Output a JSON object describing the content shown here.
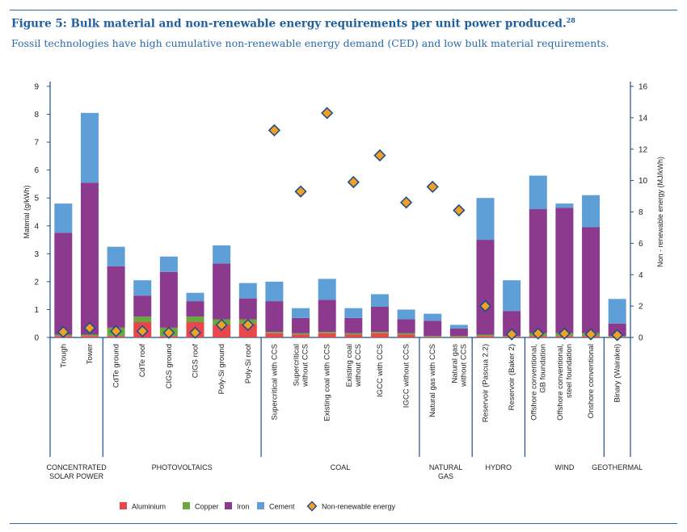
{
  "figure": {
    "title": "Figure 5: Bulk material and non-renewable energy requirements per unit power produced.",
    "title_sup": "28",
    "subtitle": "Fossil technologies have high cumulative non-renewable energy demand (CED) and low bulk material requirements."
  },
  "colors": {
    "Aluminium": "#e8474c",
    "Copper": "#6aa83f",
    "Iron": "#8c3a8d",
    "Cement": "#5f9fd8",
    "diamond_fill": "#f2a122",
    "diamond_stroke": "#1f4e8c",
    "frame": "#1f4e8c",
    "accent": "#2a6aa9"
  },
  "chart_data": {
    "type": "bar",
    "stacked": true,
    "title": "",
    "ylabel": "Material (g/kWh)",
    "y2label": "Non - renewable energy (MJ/kWh)",
    "ylim": [
      0,
      9
    ],
    "y2lim": [
      0,
      16
    ],
    "yticks": [
      0,
      1,
      2,
      3,
      4,
      5,
      6,
      7,
      8,
      9
    ],
    "y2ticks": [
      0,
      2,
      4,
      6,
      8,
      10,
      12,
      14,
      16
    ],
    "grid": false,
    "categories": [
      "Trough",
      "Tower",
      "CdTe ground",
      "CdTe roof",
      "CIGS ground",
      "CIGS roof",
      "Poly-Si ground",
      "Poly-Si roof",
      "Supercritical with CCS",
      "Supercritical without CCS",
      "Existing coal with CCS",
      "Existing coal without CCS",
      "IGCC with CCS",
      "IGCC without CCS",
      "Natural gas with CCS",
      "Natural gas without CCS",
      "Reservoir (Pascua 2.2)",
      "Reservoir (Baker 2)",
      "Offshore conventional, GB foundation",
      "Offshore conventional, steel foundation",
      "Onshore conventional",
      "Binary (Wairakei)"
    ],
    "category_lines": [
      [
        "Trough"
      ],
      [
        "Tower"
      ],
      [
        "CdTe ground"
      ],
      [
        "CdTe roof"
      ],
      [
        "CIGS ground"
      ],
      [
        "CIGS roof"
      ],
      [
        "Poly-Si ground"
      ],
      [
        "Poly-Si roof"
      ],
      [
        "Supercritical with CCS"
      ],
      [
        "Supercritical",
        "without CCS"
      ],
      [
        "Existing coal with CCS"
      ],
      [
        "Existing coal",
        "without CCS"
      ],
      [
        "IGCC with CCS"
      ],
      [
        "IGCC without CCS"
      ],
      [
        "Natural gas with CCS"
      ],
      [
        "Natural gas",
        "without CCS"
      ],
      [
        "Reservoir (Pascua 2.2)"
      ],
      [
        "Reservoir (Baker 2)"
      ],
      [
        "Offshore conventional,",
        "GB foundation"
      ],
      [
        "Offshore conventional,",
        "steel foundation"
      ],
      [
        "Onshore conventional"
      ],
      [
        "Binary (Wairakei)"
      ]
    ],
    "groups": [
      {
        "lines": [
          "CONCENTRATED",
          "SOLAR POWER"
        ],
        "start": 0,
        "end": 1
      },
      {
        "lines": [
          "PHOTOVOLTAICS"
        ],
        "start": 2,
        "end": 7
      },
      {
        "lines": [
          "COAL"
        ],
        "start": 8,
        "end": 13
      },
      {
        "lines": [
          "NATURAL",
          "GAS"
        ],
        "start": 14,
        "end": 15
      },
      {
        "lines": [
          "HYDRO"
        ],
        "start": 16,
        "end": 17
      },
      {
        "lines": [
          "WIND"
        ],
        "start": 18,
        "end": 20
      },
      {
        "lines": [
          "GEOTHERMAL"
        ],
        "start": 21,
        "end": 21
      }
    ],
    "series": [
      {
        "name": "Aluminium",
        "values": [
          0.05,
          0.05,
          0.05,
          0.55,
          0.05,
          0.55,
          0.45,
          0.5,
          0.15,
          0.1,
          0.15,
          0.1,
          0.15,
          0.1,
          0.02,
          0.02,
          0.05,
          0.03,
          0.05,
          0.05,
          0.05,
          0.02
        ]
      },
      {
        "name": "Copper",
        "values": [
          0.05,
          0.05,
          0.3,
          0.2,
          0.3,
          0.2,
          0.2,
          0.15,
          0.05,
          0.05,
          0.05,
          0.05,
          0.05,
          0.05,
          0.03,
          0.03,
          0.05,
          0.02,
          0.1,
          0.1,
          0.1,
          0.03
        ]
      },
      {
        "name": "Iron",
        "values": [
          3.65,
          5.45,
          2.2,
          0.75,
          2.0,
          0.55,
          2.0,
          0.75,
          1.1,
          0.55,
          1.15,
          0.55,
          0.9,
          0.5,
          0.55,
          0.27,
          3.4,
          0.9,
          4.45,
          4.5,
          3.8,
          0.45
        ]
      },
      {
        "name": "Cement",
        "values": [
          1.05,
          2.5,
          0.7,
          0.55,
          0.55,
          0.3,
          0.65,
          0.55,
          0.7,
          0.35,
          0.75,
          0.35,
          0.45,
          0.35,
          0.25,
          0.13,
          1.5,
          1.1,
          1.2,
          0.15,
          1.15,
          0.88
        ]
      }
    ],
    "line_series": {
      "name": "Non-renewable energy",
      "axis": "right",
      "values": [
        0.35,
        0.6,
        0.4,
        0.4,
        0.3,
        0.3,
        0.8,
        0.8,
        13.2,
        9.3,
        14.3,
        9.9,
        11.6,
        8.6,
        9.6,
        8.1,
        2.0,
        0.2,
        0.25,
        0.25,
        0.2,
        0.15
      ]
    },
    "legend": {
      "position": "bottom",
      "entries": [
        "Aluminium",
        "Copper",
        "Iron",
        "Cement",
        "Non-renewable energy"
      ]
    }
  }
}
